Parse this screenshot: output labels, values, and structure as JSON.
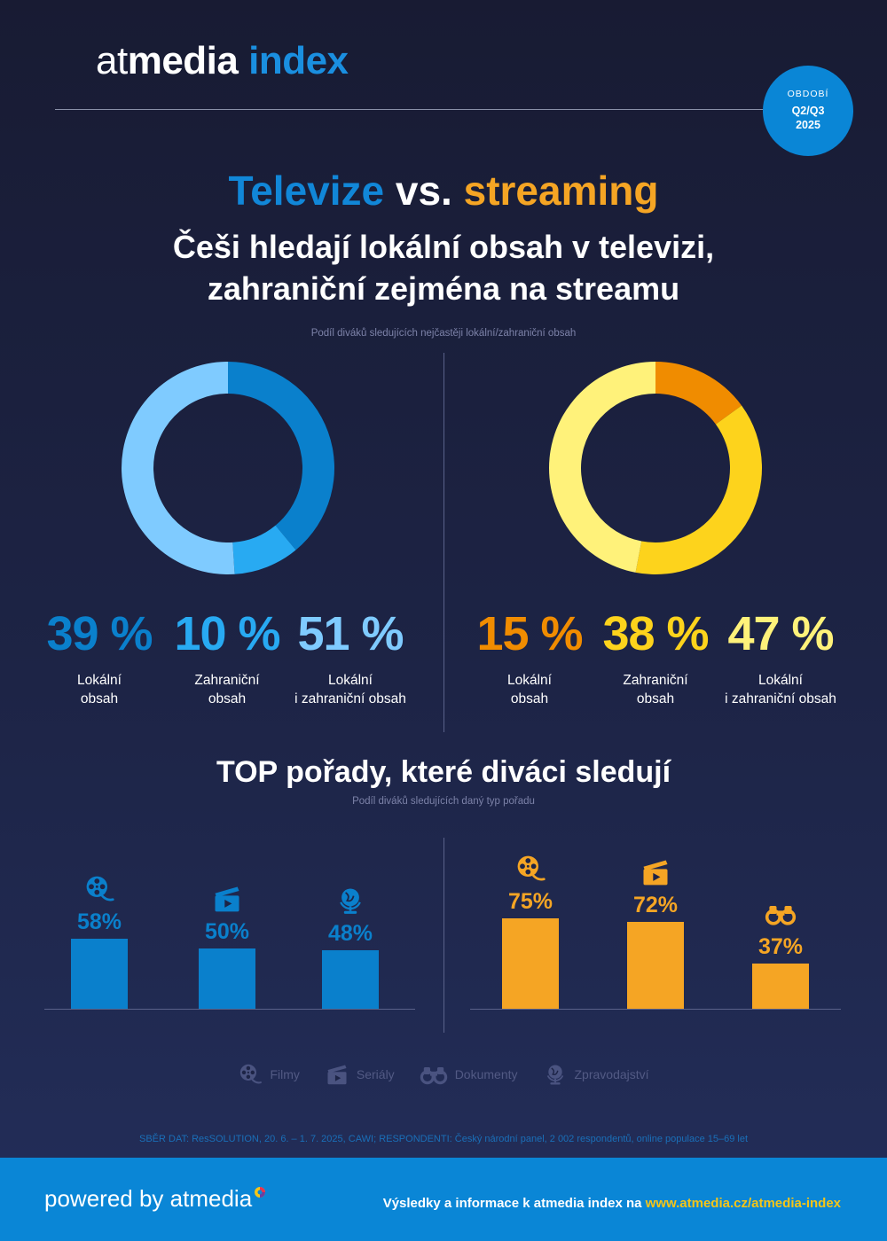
{
  "header": {
    "logo": {
      "part1": "at",
      "part2": "media",
      "part3": " index"
    },
    "period": {
      "label": "OBDOBÍ",
      "value_line1": "Q2/Q3",
      "value_line2": "2025"
    }
  },
  "headline": {
    "tv": "Televize",
    "vs": " vs. ",
    "streaming": "streaming"
  },
  "subtitle": {
    "line1": "Češi hledají lokální obsah v televizi,",
    "line2": "zahraniční zejména na streamu"
  },
  "donut_caption": "Podíl diváků sledujících nejčastěji lokální/zahraniční obsah",
  "colors": {
    "tv_local": "#0a80cc",
    "tv_foreign": "#28aaf2",
    "tv_both": "#7fcbff",
    "st_local": "#f08c00",
    "st_foreign": "#fdd31c",
    "st_both": "#fff27a",
    "tv_bar": "#0a80cc",
    "st_bar": "#f5a524"
  },
  "chart_data": [
    {
      "type": "pie",
      "series": "Televize",
      "categories": [
        "Lokální obsah",
        "Zahraniční obsah",
        "Lokální i zahraniční obsah"
      ],
      "values": [
        39,
        10,
        51
      ],
      "labels": {
        "values": [
          "39 %",
          "10 %",
          "51 %"
        ],
        "local": "Lokální\nobsah",
        "foreign": "Zahraniční\nobsah",
        "both": "Lokální\ni zahraniční obsah"
      }
    },
    {
      "type": "pie",
      "series": "Streaming",
      "categories": [
        "Lokální obsah",
        "Zahraniční obsah",
        "Lokální i zahraniční obsah"
      ],
      "values": [
        15,
        38,
        47
      ],
      "labels": {
        "values": [
          "15 %",
          "38 %",
          "47 %"
        ]
      }
    },
    {
      "type": "bar",
      "title": "TOP pořady, které diváci sledují",
      "subtitle": "Podíl diváků sledujících daný typ pořadu",
      "series_tv": {
        "categories": [
          "Filmy",
          "Seriály",
          "Zpravodajství"
        ],
        "values": [
          58,
          50,
          48
        ],
        "labels": [
          "58%",
          "50%",
          "48%"
        ],
        "icons": [
          "film-reel-icon",
          "clapper-icon",
          "globe-icon"
        ]
      },
      "series_streaming": {
        "categories": [
          "Filmy",
          "Seriály",
          "Dokumenty"
        ],
        "values": [
          75,
          72,
          37
        ],
        "labels": [
          "75%",
          "72%",
          "37%"
        ],
        "icons": [
          "film-reel-icon",
          "clapper-icon",
          "binoculars-icon"
        ]
      }
    }
  ],
  "donut_labels": {
    "tv": [
      {
        "l1": "Lokální",
        "l2": "obsah"
      },
      {
        "l1": "Zahraniční",
        "l2": "obsah"
      },
      {
        "l1": "Lokální",
        "l2": "i zahraniční obsah"
      }
    ],
    "st": [
      {
        "l1": "Lokální",
        "l2": "obsah"
      },
      {
        "l1": "Zahraniční",
        "l2": "obsah"
      },
      {
        "l1": "Lokální",
        "l2": "i zahraniční obsah"
      }
    ],
    "tv_values": [
      "39 %",
      "10 %",
      "51 %"
    ],
    "st_values": [
      "15 %",
      "38 %",
      "47 %"
    ]
  },
  "legend": [
    {
      "icon": "film-reel-icon",
      "label": "Filmy"
    },
    {
      "icon": "clapper-icon",
      "label": "Seriály"
    },
    {
      "icon": "binoculars-icon",
      "label": "Dokumenty"
    },
    {
      "icon": "globe-icon",
      "label": "Zpravodajství"
    }
  ],
  "footnote": "SBĚR DAT: ResSOLUTION, 20. 6. – 1. 7. 2025, CAWI; RESPONDENTI: Český národní panel, 2 002 respondentů, online populace 15–69 let",
  "footer": {
    "powered_prefix": "powered by ",
    "powered_brand": "atmedia",
    "info_text": "Výsledky a informace k atmedia index na ",
    "info_url": "www.atmedia.cz/atmedia-index"
  }
}
